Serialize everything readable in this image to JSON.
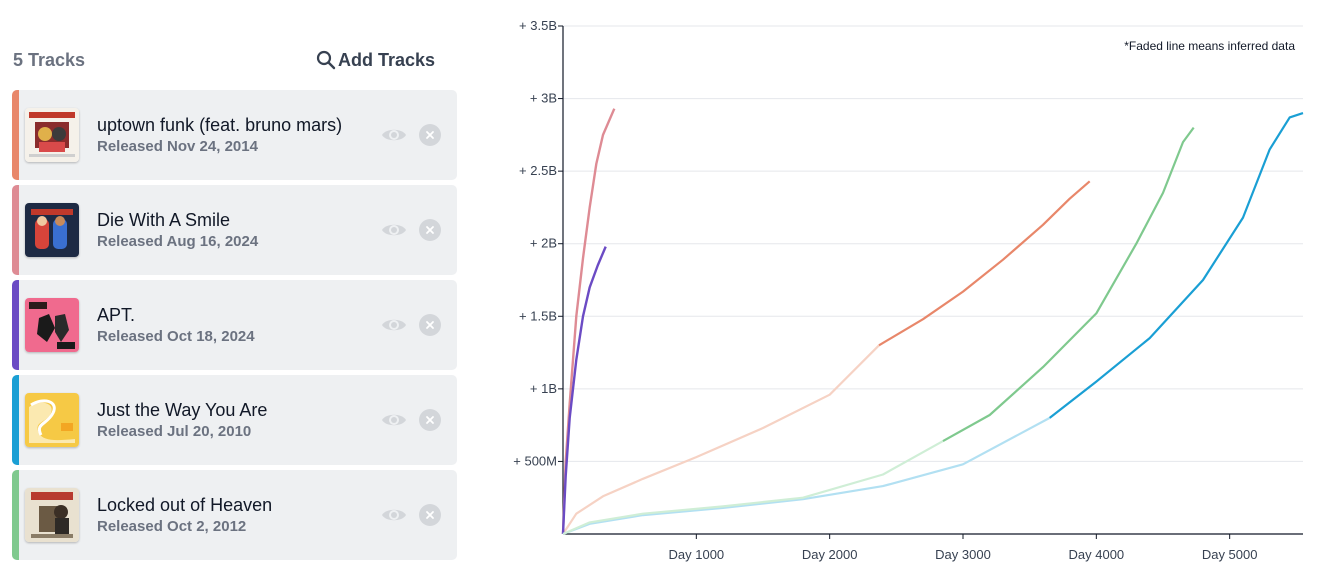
{
  "panel": {
    "track_count": "5 Tracks",
    "add_tracks_label": "Add Tracks"
  },
  "tracks": [
    {
      "title": "uptown funk (feat. bruno mars)",
      "released": "Released Nov 24, 2014",
      "color": "#e8876a",
      "faded_color": "#f6d2c4",
      "cover": "los-numeros-1-cover"
    },
    {
      "title": "Die With A Smile",
      "released": "Released Aug 16, 2024",
      "color": "#de8b94",
      "faded_color": "#f2c8cc",
      "cover": "die-with-a-smile-cover"
    },
    {
      "title": "APT.",
      "released": "Released Oct 18, 2024",
      "color": "#6b4bc4",
      "faded_color": "#c9bdf0",
      "cover": "apt-cover"
    },
    {
      "title": "Just the Way You Are",
      "released": "Released Jul 20, 2010",
      "color": "#1a9fd4",
      "faded_color": "#b2e0f2",
      "cover": "doo-wops-cover"
    },
    {
      "title": "Locked out of Heaven",
      "released": "Released Oct 2, 2012",
      "color": "#7fc98e",
      "faded_color": "#cfeed6",
      "cover": "unorthodox-jukebox-cover"
    }
  ],
  "chart_data": {
    "type": "line",
    "note": "*Faded line means inferred data",
    "x_ticks": [
      "Day 1000",
      "Day 2000",
      "Day 3000",
      "Day 4000",
      "Day 5000"
    ],
    "y_ticks": [
      "+ 500M",
      "+ 1B",
      "+ 1.5B",
      "+ 2B",
      "+ 2.5B",
      "+ 3B",
      "+ 3.5B"
    ],
    "xlim": [
      0,
      5550
    ],
    "ylim": [
      0,
      3500000000
    ],
    "grid": true,
    "series": [
      {
        "track": "uptown funk (feat. bruno mars)",
        "color": "#e8876a",
        "faded_color": "#f6d2c4",
        "inferred_until": 2370,
        "points": [
          [
            0,
            0
          ],
          [
            100,
            140000000
          ],
          [
            300,
            260000000
          ],
          [
            600,
            380000000
          ],
          [
            1000,
            530000000
          ],
          [
            1500,
            730000000
          ],
          [
            2000,
            960000000
          ],
          [
            2370,
            1300000000
          ],
          [
            2700,
            1480000000
          ],
          [
            3000,
            1670000000
          ],
          [
            3300,
            1890000000
          ],
          [
            3600,
            2130000000
          ],
          [
            3800,
            2310000000
          ],
          [
            3950,
            2430000000
          ]
        ]
      },
      {
        "track": "Die With A Smile",
        "color": "#de8b94",
        "faded_color": "#f2c8cc",
        "inferred_until": 0,
        "points": [
          [
            0,
            0
          ],
          [
            20,
            500000000
          ],
          [
            50,
            900000000
          ],
          [
            100,
            1500000000
          ],
          [
            150,
            1900000000
          ],
          [
            200,
            2250000000
          ],
          [
            250,
            2550000000
          ],
          [
            300,
            2750000000
          ],
          [
            385,
            2930000000
          ]
        ]
      },
      {
        "track": "APT.",
        "color": "#6b4bc4",
        "faded_color": "#c9bdf0",
        "inferred_until": 0,
        "points": [
          [
            0,
            0
          ],
          [
            20,
            400000000
          ],
          [
            50,
            800000000
          ],
          [
            100,
            1200000000
          ],
          [
            150,
            1500000000
          ],
          [
            200,
            1700000000
          ],
          [
            260,
            1850000000
          ],
          [
            320,
            1980000000
          ]
        ]
      },
      {
        "track": "Just the Way You Are",
        "color": "#1a9fd4",
        "faded_color": "#b2e0f2",
        "inferred_until": 3650,
        "points": [
          [
            0,
            0
          ],
          [
            200,
            70000000
          ],
          [
            600,
            130000000
          ],
          [
            1200,
            180000000
          ],
          [
            1800,
            240000000
          ],
          [
            2400,
            330000000
          ],
          [
            3000,
            480000000
          ],
          [
            3650,
            800000000
          ],
          [
            4000,
            1050000000
          ],
          [
            4400,
            1350000000
          ],
          [
            4800,
            1750000000
          ],
          [
            5100,
            2180000000
          ],
          [
            5300,
            2650000000
          ],
          [
            5450,
            2870000000
          ],
          [
            5550,
            2900000000
          ]
        ]
      },
      {
        "track": "Locked out of Heaven",
        "color": "#7fc98e",
        "faded_color": "#cfeed6",
        "inferred_until": 2850,
        "points": [
          [
            0,
            0
          ],
          [
            200,
            80000000
          ],
          [
            600,
            140000000
          ],
          [
            1200,
            190000000
          ],
          [
            1800,
            250000000
          ],
          [
            2400,
            410000000
          ],
          [
            2850,
            640000000
          ],
          [
            3200,
            820000000
          ],
          [
            3600,
            1150000000
          ],
          [
            4000,
            1520000000
          ],
          [
            4300,
            2000000000
          ],
          [
            4500,
            2350000000
          ],
          [
            4650,
            2700000000
          ],
          [
            4730,
            2800000000
          ]
        ]
      }
    ]
  }
}
